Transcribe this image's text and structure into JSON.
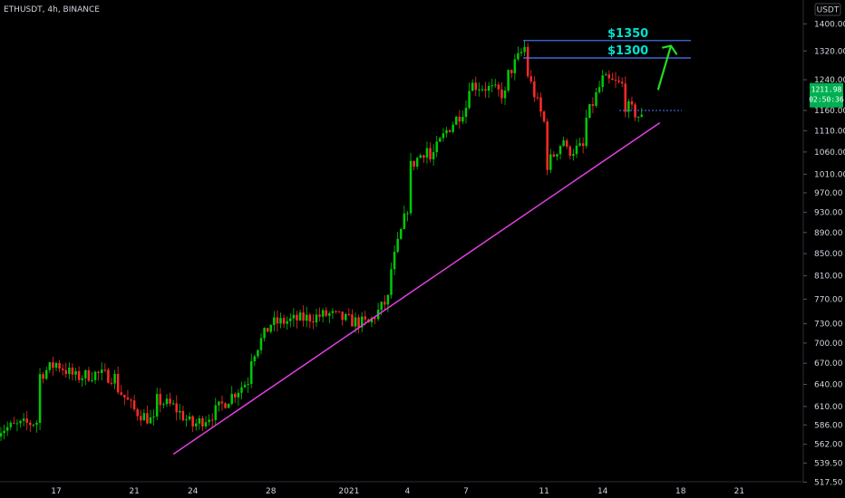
{
  "header": {
    "symbol_line": "ETHUSDT, 4h, BINANCE",
    "currency_button": "USDT"
  },
  "price_tag": {
    "last_price": "1211.98",
    "countdown": "02:50:36"
  },
  "annotations": {
    "label_1350": "$1350",
    "label_1300": "$1300"
  },
  "colors": {
    "background": "#000000",
    "up": "#00c805",
    "down": "#ff2a2a",
    "trendline": "#e040e0",
    "levels": "#4a7dff",
    "arrow": "#22dd22",
    "label": "#00e0d0",
    "tag": "#00b050"
  },
  "chart_data": {
    "type": "candlestick",
    "title": "ETHUSDT, 4h, BINANCE",
    "x_tick_labels": [
      "17",
      "21",
      "24",
      "28",
      "2021",
      "4",
      "7",
      "11",
      "14",
      "18",
      "21"
    ],
    "y_tick_labels": [
      "1400.00",
      "1320.00",
      "1240.00",
      "1160.00",
      "1110.00",
      "1060.00",
      "1010.00",
      "970.00",
      "930.00",
      "890.00",
      "850.00",
      "810.00",
      "770.00",
      "730.00",
      "700.00",
      "670.00",
      "640.00",
      "610.00",
      "586.00",
      "562.00",
      "539.50",
      "517.50"
    ],
    "y_axis_scale": "log",
    "ylim": [
      505,
      1440
    ],
    "horizontal_levels": [
      1350,
      1300
    ],
    "last_price": 1211.98,
    "trendline": {
      "from": {
        "date": "Dec 23",
        "price": 550
      },
      "to": {
        "date": "Jan 16",
        "price": 1125
      }
    },
    "series_path": [
      [
        "Dec 14",
        580
      ],
      [
        "Dec 15",
        585
      ],
      [
        "Dec 16",
        590
      ],
      [
        "Dec 16",
        650
      ],
      [
        "Dec 17",
        670
      ],
      [
        "Dec 18",
        650
      ],
      [
        "Dec 19",
        655
      ],
      [
        "Dec 20",
        650
      ],
      [
        "Dec 20",
        640
      ],
      [
        "Dec 21",
        605
      ],
      [
        "Dec 22",
        590
      ],
      [
        "Dec 22",
        620
      ],
      [
        "Dec 23",
        610
      ],
      [
        "Dec 24",
        585
      ],
      [
        "Dec 25",
        600
      ],
      [
        "Dec 26",
        625
      ],
      [
        "Dec 27",
        650
      ],
      [
        "Dec 27",
        680
      ],
      [
        "Dec 28",
        730
      ],
      [
        "Dec 29",
        735
      ],
      [
        "Dec 30",
        740
      ],
      [
        "Dec 31",
        745
      ],
      [
        "Jan 1",
        735
      ],
      [
        "Jan 2",
        730
      ],
      [
        "Jan 3",
        770
      ],
      [
        "Jan 3",
        800
      ],
      [
        "Jan 4",
        940
      ],
      [
        "Jan 4",
        1020
      ],
      [
        "Jan 5",
        1070
      ],
      [
        "Jan 5",
        1030
      ],
      [
        "Jan 6",
        1110
      ],
      [
        "Jan 7",
        1170
      ],
      [
        "Jan 7",
        1230
      ],
      [
        "Jan 8",
        1220
      ],
      [
        "Jan 9",
        1200
      ],
      [
        "Jan 9",
        1240
      ],
      [
        "Jan 10",
        1330
      ],
      [
        "Jan 10",
        1280
      ],
      [
        "Jan 11",
        1130
      ],
      [
        "Jan 11",
        1020
      ],
      [
        "Jan 12",
        1090
      ],
      [
        "Jan 12",
        1060
      ],
      [
        "Jan 13",
        1070
      ],
      [
        "Jan 13",
        1120
      ],
      [
        "Jan 14",
        1240
      ],
      [
        "Jan 15",
        1225
      ],
      [
        "Jan 15",
        1180
      ],
      [
        "Jan 16",
        1140
      ],
      [
        "Jan 16",
        1200
      ],
      [
        "Jan 16",
        1212
      ]
    ]
  }
}
